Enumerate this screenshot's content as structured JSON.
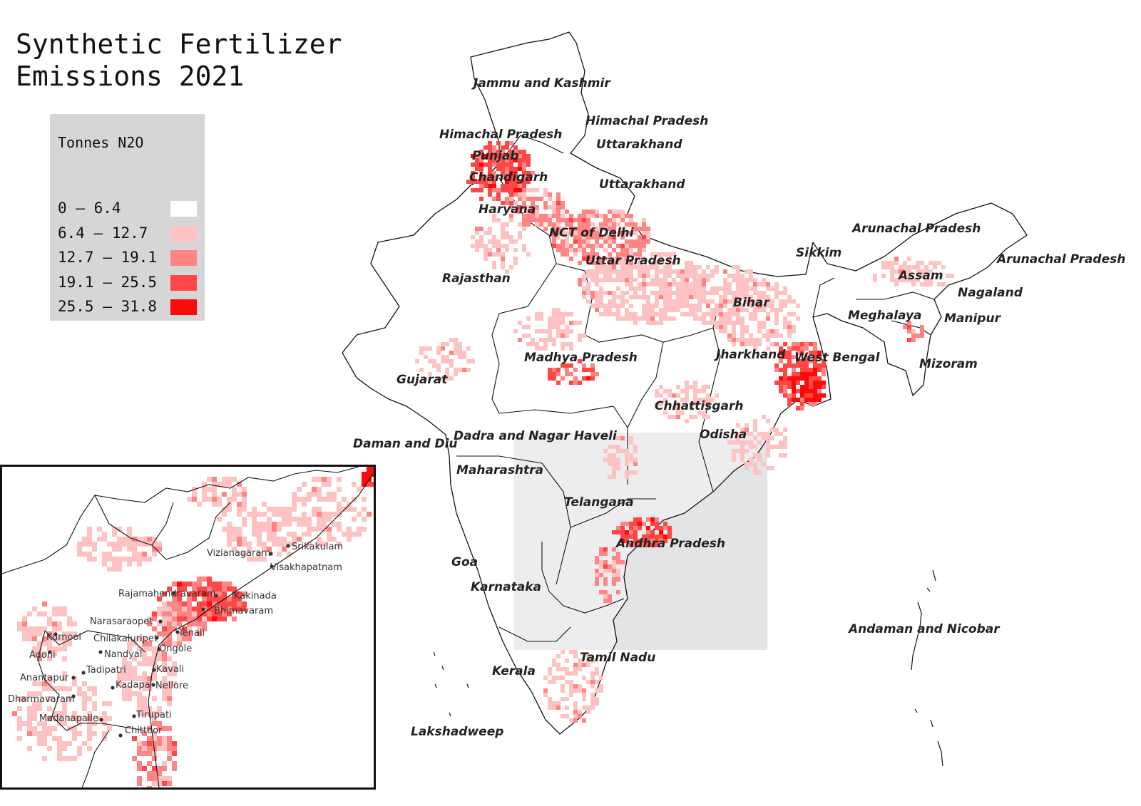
{
  "title": {
    "line1": "Synthetic Fertilizer",
    "line2": "Emissions 2021"
  },
  "legend": {
    "title": "Tonnes N2O",
    "classes": [
      {
        "label": "0 – 6.4",
        "color": "#ffffff"
      },
      {
        "label": "6.4 – 12.7",
        "color": "#ffc2c2"
      },
      {
        "label": "12.7 – 19.1",
        "color": "#ff8585"
      },
      {
        "label": "19.1 – 25.5",
        "color": "#ff4747"
      },
      {
        "label": "25.5 – 31.8",
        "color": "#ff0a0a"
      }
    ]
  },
  "states": [
    "Jammu and Kashmir",
    "Himachal Pradesh",
    "Himachal Pradesh",
    "Punjab",
    "Chandigarh",
    "Uttarakhand",
    "Uttarakhand",
    "Haryana",
    "NCT of Delhi",
    "Uttar Pradesh",
    "Rajasthan",
    "Arunachal Pradesh",
    "Arunachal Pradesh",
    "Sikkim",
    "Assam",
    "Nagaland",
    "Bihar",
    "Meghalaya",
    "Manipur",
    "Madhya Pradesh",
    "Jharkhand",
    "West Bengal",
    "Mizoram",
    "Gujarat",
    "Chhattisgarh",
    "Daman and Diu",
    "Dadra and Nagar Haveli",
    "Odisha",
    "Maharashtra",
    "Telangana",
    "Andhra Pradesh",
    "Goa",
    "Karnataka",
    "Andaman and Nicobar",
    "Tamil Nadu",
    "Kerala",
    "Lakshadweep"
  ],
  "inset": {
    "cities": [
      "Srikakulam",
      "Vizianagaram",
      "Visakhapatnam",
      "Rajamahendravaram",
      "Kakinada",
      "Bhimavaram",
      "Narasaraopet",
      "Tenali",
      "Kurnool",
      "Chilakaluripet",
      "Ongole",
      "Adoni",
      "Nandyal",
      "Tadipatri",
      "Kavali",
      "Anantapur",
      "Kadapa",
      "Nellore",
      "Dharmavaram",
      "Madanapalle",
      "Tirupati",
      "Chittoor"
    ]
  },
  "colors": {
    "inset_extent": "#e3e4e6",
    "border": "#111111"
  }
}
